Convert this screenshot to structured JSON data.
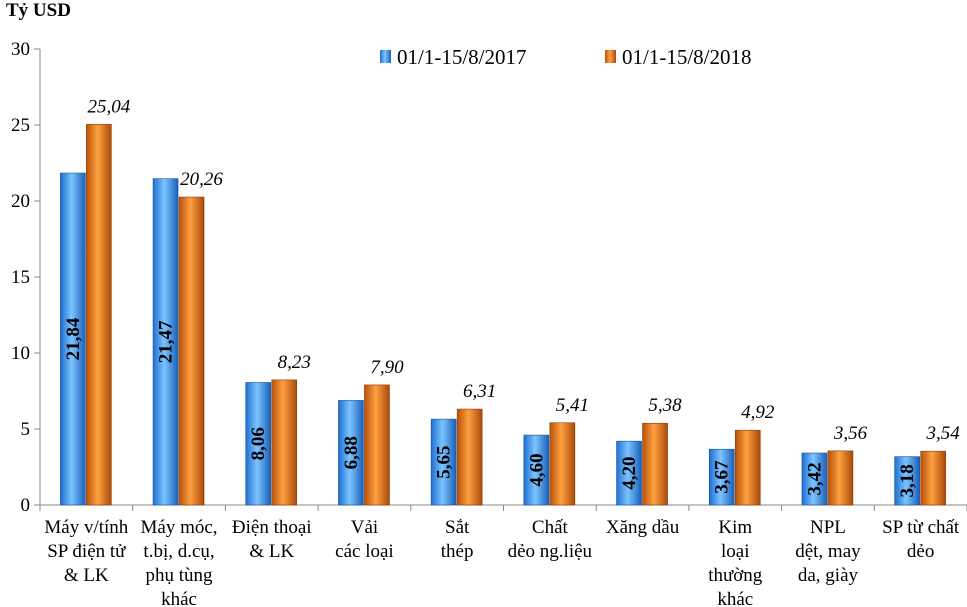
{
  "chart_data": {
    "type": "bar",
    "ylabel": "Tỷ USD",
    "ylim": [
      0,
      30
    ],
    "yticks": [
      0,
      5,
      10,
      15,
      20,
      25,
      30
    ],
    "grid": false,
    "legend_position": "top-right",
    "categories": [
      [
        "Máy v/tính",
        "SP điện tử",
        "& LK"
      ],
      [
        "Máy móc,",
        "t.bị, d.cụ,",
        "phụ tùng",
        "khác"
      ],
      [
        "Điện thoại",
        "& LK"
      ],
      [
        "Vải",
        "các loại"
      ],
      [
        "Sắt",
        "thép"
      ],
      [
        "Chất",
        "dẻo ng.liệu"
      ],
      [
        "Xăng dầu"
      ],
      [
        "Kim",
        "loại",
        "thường",
        "khác"
      ],
      [
        "NPL",
        "dệt, may",
        "da, giày"
      ],
      [
        "SP từ chất",
        "dẻo"
      ]
    ],
    "series": [
      {
        "name": "01/1-15/8/2017",
        "color": "#3399ff",
        "values": [
          21.84,
          21.47,
          8.06,
          6.88,
          5.65,
          4.6,
          4.2,
          3.67,
          3.42,
          3.18
        ],
        "labels": [
          "21,84",
          "21,47",
          "8,06",
          "6,88",
          "5,65",
          "4,60",
          "4,20",
          "3,67",
          "3,42",
          "3,18"
        ]
      },
      {
        "name": "01/1-15/8/2018",
        "color": "#e87511",
        "values": [
          25.04,
          20.26,
          8.23,
          7.9,
          6.31,
          5.41,
          5.38,
          4.92,
          3.56,
          3.54
        ],
        "labels": [
          "25,04",
          "20,26",
          "8,23",
          "7,90",
          "6,31",
          "5,41",
          "5,38",
          "4,92",
          "3,56",
          "3,54"
        ]
      }
    ]
  }
}
